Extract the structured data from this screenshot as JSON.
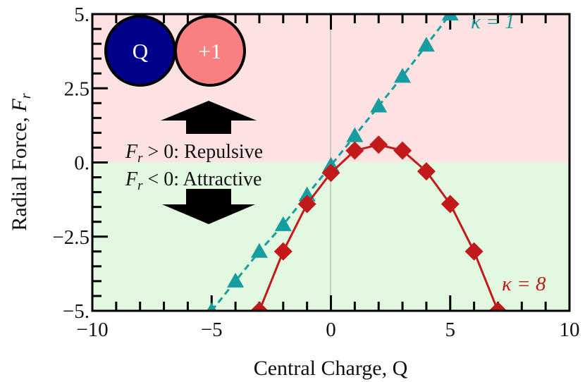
{
  "chart_data": {
    "type": "scatter",
    "xlabel": "Central Charge, Q",
    "ylabel_main": "Radial Force, ",
    "ylabel_symbol": "F",
    "ylabel_sub": "r",
    "xlim": [
      -10,
      10
    ],
    "ylim": [
      -5,
      5
    ],
    "x_ticks": [
      -10,
      -5,
      0,
      5,
      10
    ],
    "x_tick_labels": [
      "−10",
      "−5",
      "0",
      "5",
      "10"
    ],
    "y_ticks": [
      -5,
      -2.5,
      0,
      2.5,
      5
    ],
    "y_tick_labels": [
      "−5.",
      "−2.5",
      "0.",
      "2.5",
      "5."
    ],
    "region_colors": {
      "repulsive": "#fde2e2",
      "attractive": "#e3f8e0"
    },
    "series": [
      {
        "name": "kappa-1",
        "label": "κ = 1",
        "color": "#169d9f",
        "marker": "triangle",
        "line": "dashed",
        "x": [
          -5,
          -4,
          -3,
          -2,
          -1,
          0,
          1,
          2,
          3,
          4,
          5
        ],
        "y": [
          -5.0,
          -4.0,
          -3.0,
          -2.1,
          -1.1,
          -0.1,
          0.9,
          1.9,
          2.9,
          3.95,
          5.0
        ]
      },
      {
        "name": "kappa-8",
        "label": "κ = 8",
        "color": "#c21a1a",
        "marker": "diamond",
        "line": "solid",
        "x": [
          -3,
          -2,
          -1,
          0,
          1,
          2,
          3,
          4,
          5,
          6,
          7
        ],
        "y": [
          -5.0,
          -3.0,
          -1.4,
          -0.35,
          0.4,
          0.6,
          0.4,
          -0.3,
          -1.4,
          -3.0,
          -5.0
        ]
      }
    ],
    "annotations": {
      "repulsive": {
        "symbol": "F",
        "sub": "r",
        "text": " > 0: Repulsive"
      },
      "attractive": {
        "symbol": "F",
        "sub": "r",
        "text": " < 0: Attractive"
      }
    },
    "legend_circles": [
      {
        "label": "Q",
        "color": "#00008b"
      },
      {
        "label": "+1",
        "color": "#f88080"
      }
    ]
  }
}
